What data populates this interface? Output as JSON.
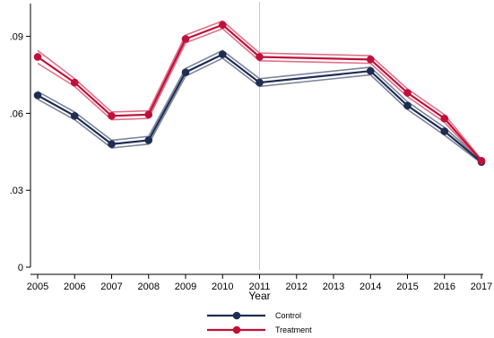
{
  "chart_data": {
    "type": "line",
    "xlabel": "Year",
    "ylabel": "",
    "x": [
      2005,
      2006,
      2007,
      2008,
      2009,
      2010,
      2011,
      2014,
      2015,
      2016,
      2017
    ],
    "x_ticks": [
      "2005",
      "2006",
      "2007",
      "2008",
      "2009",
      "2010",
      "2011",
      "2012",
      "2013",
      "2014",
      "2015",
      "2016",
      "2017"
    ],
    "y_ticks": [
      "0",
      ".03",
      ".06",
      ".09"
    ],
    "xlim": [
      2005,
      2017
    ],
    "ylim": [
      0,
      0.1
    ],
    "reference_line_x": 2011,
    "grid": false,
    "legend_position": "bottom",
    "series": [
      {
        "name": "Control",
        "color": "#1f2d52",
        "band_color": "#7a849a",
        "values": [
          0.067,
          0.059,
          0.048,
          0.0495,
          0.076,
          0.083,
          0.072,
          0.0765,
          0.063,
          0.053,
          0.041
        ],
        "lower": [
          0.0655,
          0.0575,
          0.0465,
          0.048,
          0.0745,
          0.0815,
          0.0705,
          0.075,
          0.0615,
          0.0515,
          0.0405
        ],
        "upper": [
          0.0685,
          0.0605,
          0.0495,
          0.051,
          0.0775,
          0.0845,
          0.0735,
          0.078,
          0.0645,
          0.0545,
          0.0415
        ]
      },
      {
        "name": "Treatment",
        "color": "#c0103a",
        "band_color": "#e07088",
        "values": [
          0.082,
          0.072,
          0.059,
          0.0595,
          0.089,
          0.0945,
          0.082,
          0.081,
          0.068,
          0.058,
          0.0415
        ],
        "lower": [
          0.0795,
          0.0705,
          0.0575,
          0.058,
          0.0875,
          0.093,
          0.0805,
          0.0795,
          0.0665,
          0.0565,
          0.041
        ],
        "upper": [
          0.0845,
          0.0735,
          0.0605,
          0.061,
          0.0905,
          0.096,
          0.0835,
          0.0825,
          0.0695,
          0.0595,
          0.042
        ]
      }
    ]
  }
}
